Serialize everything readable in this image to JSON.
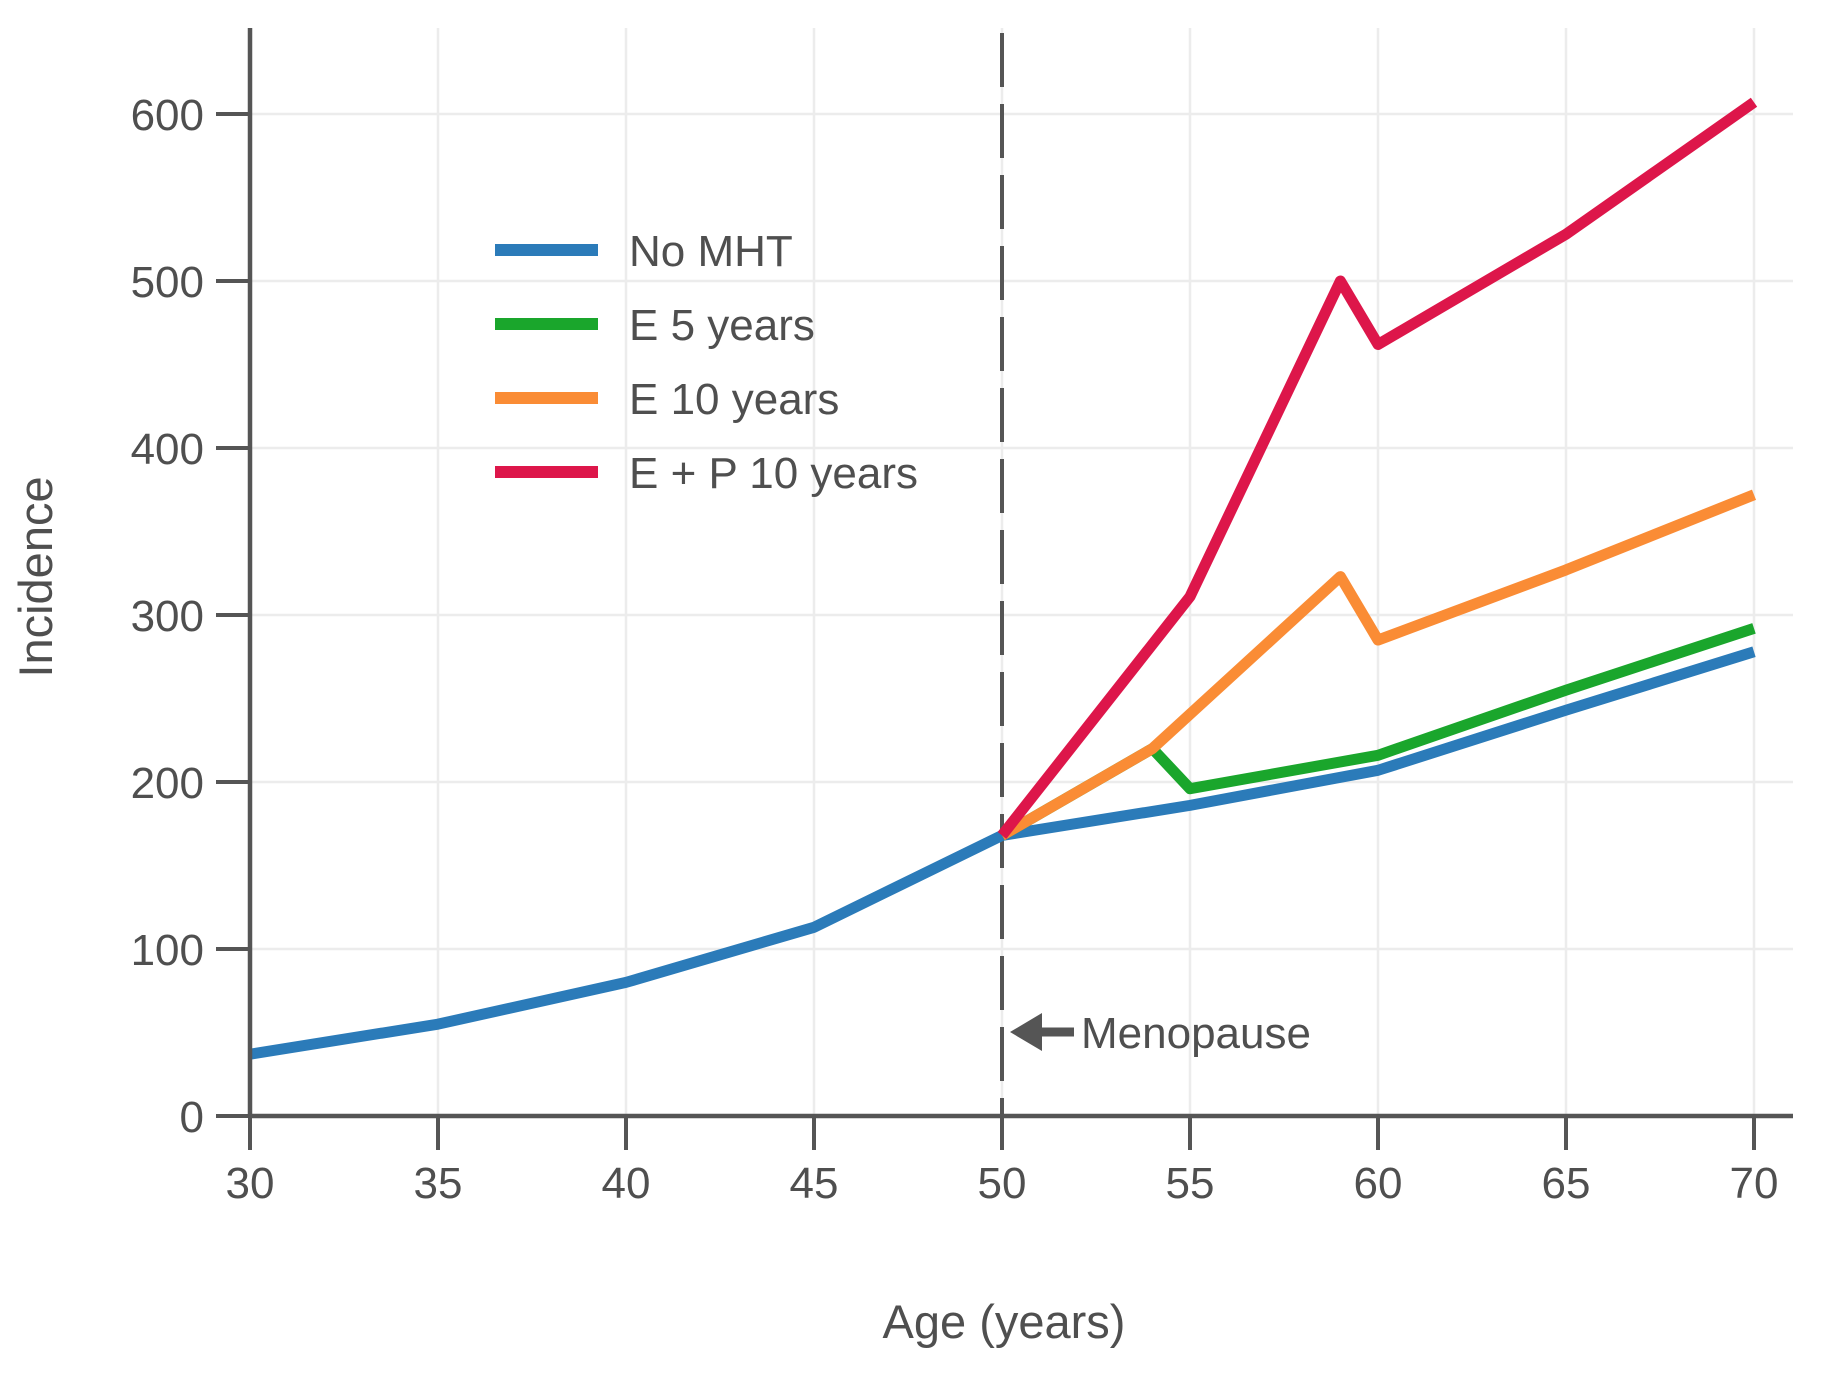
{
  "style": {
    "background": "#ffffff",
    "axis_color": "#555555",
    "grid_color": "#ececec",
    "text_color": "#4f4f4f",
    "menopause_line_color": "#555555"
  },
  "chart_data": {
    "type": "line",
    "title": "",
    "xlabel": "Age (years)",
    "ylabel": "Incidence",
    "x_ticks": [
      30,
      35,
      40,
      45,
      50,
      55,
      60,
      65,
      70
    ],
    "y_ticks": [
      0,
      100,
      200,
      300,
      400,
      500,
      600
    ],
    "xlim": [
      30,
      71
    ],
    "ylim": [
      0,
      651
    ],
    "grid": true,
    "legend_position": "upper-left-inside",
    "menopause_vline": {
      "x": 50,
      "style": "dashed"
    },
    "annotation": {
      "text": "Menopause",
      "arrow": "left",
      "at_x": 50,
      "at_y": 50
    },
    "series": [
      {
        "name": "No MHT",
        "color": "#2b7bb9",
        "points": [
          [
            30,
            37
          ],
          [
            35,
            55
          ],
          [
            40,
            80
          ],
          [
            45,
            113
          ],
          [
            50,
            168
          ],
          [
            55,
            186
          ],
          [
            60,
            207
          ],
          [
            65,
            243
          ],
          [
            70,
            278
          ]
        ]
      },
      {
        "name": "E 5 years",
        "color": "#1aa62c",
        "points": [
          [
            50,
            168
          ],
          [
            54,
            220
          ],
          [
            55,
            196
          ],
          [
            60,
            216
          ],
          [
            65,
            255
          ],
          [
            70,
            292
          ]
        ]
      },
      {
        "name": "E 10 years",
        "color": "#fa8c35",
        "points": [
          [
            50,
            168
          ],
          [
            54,
            220
          ],
          [
            59,
            323
          ],
          [
            60,
            285
          ],
          [
            65,
            327
          ],
          [
            70,
            372
          ]
        ]
      },
      {
        "name": "E + P 10 years",
        "color": "#dd164a",
        "points": [
          [
            50,
            168
          ],
          [
            55,
            311
          ],
          [
            59,
            500
          ],
          [
            60,
            462
          ],
          [
            65,
            528
          ],
          [
            70,
            607
          ]
        ]
      }
    ]
  }
}
